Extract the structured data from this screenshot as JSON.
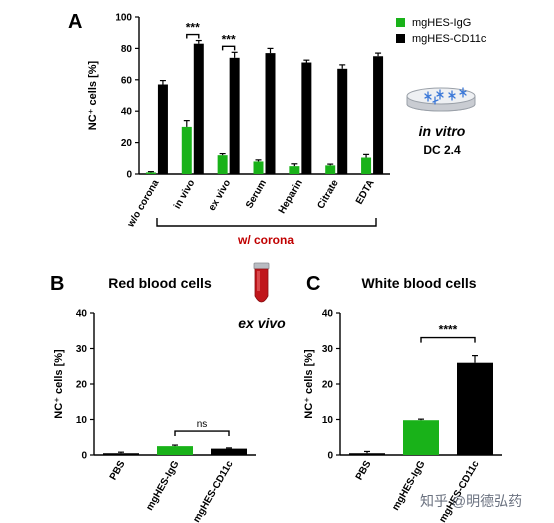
{
  "colors": {
    "igg": "#19b219",
    "cd11c": "#000000",
    "corona": "#c00000"
  },
  "panels": {
    "A": "A",
    "B": "B",
    "C": "C"
  },
  "legend": {
    "igg": "mgHES-IgG",
    "cd11c": "mgHES-CD11c"
  },
  "annotations": {
    "in_vitro": "in vitro",
    "dc": "DC 2.4",
    "ex_vivo": "ex vivo",
    "corona": "w/ corona",
    "watermark": "知乎 @明德弘药"
  },
  "chart_data": [
    {
      "type": "bar",
      "panel": "A",
      "ylabel": "NC⁺ cells [%]",
      "ylim": [
        0,
        100
      ],
      "yticks": [
        0,
        20,
        40,
        60,
        80,
        100
      ],
      "categories": [
        "w/o corona",
        "in vivo",
        "ex vivo",
        "Serum",
        "Heparin",
        "Citrate",
        "EDTA"
      ],
      "series": [
        {
          "name": "mgHES-IgG",
          "values": [
            1,
            30,
            12,
            8,
            5,
            5.5,
            10.5
          ],
          "errors": [
            0.5,
            4,
            1,
            1,
            1.5,
            0.8,
            2
          ]
        },
        {
          "name": "mgHES-CD11c",
          "values": [
            57,
            83,
            74,
            77,
            71,
            67,
            75
          ],
          "errors": [
            2.5,
            2,
            3.5,
            3,
            1.5,
            2.5,
            2
          ]
        }
      ],
      "significance": [
        {
          "category": "in vivo",
          "label": "***"
        },
        {
          "category": "ex vivo",
          "label": "***"
        }
      ]
    },
    {
      "type": "bar",
      "panel": "B",
      "title": "Red blood cells",
      "ylabel": "NC⁺ cells [%]",
      "ylim": [
        0,
        40
      ],
      "yticks": [
        0,
        10,
        20,
        30,
        40
      ],
      "categories": [
        "PBS",
        "mgHES-IgG",
        "mgHES-CD11c"
      ],
      "values": [
        0.5,
        2.5,
        1.8
      ],
      "errors": [
        0.3,
        0.3,
        0.2
      ],
      "significance": [
        {
          "between": [
            "mgHES-IgG",
            "mgHES-CD11c"
          ],
          "label": "ns"
        }
      ]
    },
    {
      "type": "bar",
      "panel": "C",
      "title": "White blood cells",
      "ylabel": "NC⁺ cells [%]",
      "ylim": [
        0,
        40
      ],
      "yticks": [
        0,
        10,
        20,
        30,
        40
      ],
      "categories": [
        "PBS",
        "mgHES-IgG",
        "mgHES-CD11c"
      ],
      "values": [
        0.5,
        9.8,
        26
      ],
      "errors": [
        0.5,
        0.3,
        2
      ],
      "significance": [
        {
          "between": [
            "mgHES-IgG",
            "mgHES-CD11c"
          ],
          "label": "****"
        }
      ]
    }
  ]
}
